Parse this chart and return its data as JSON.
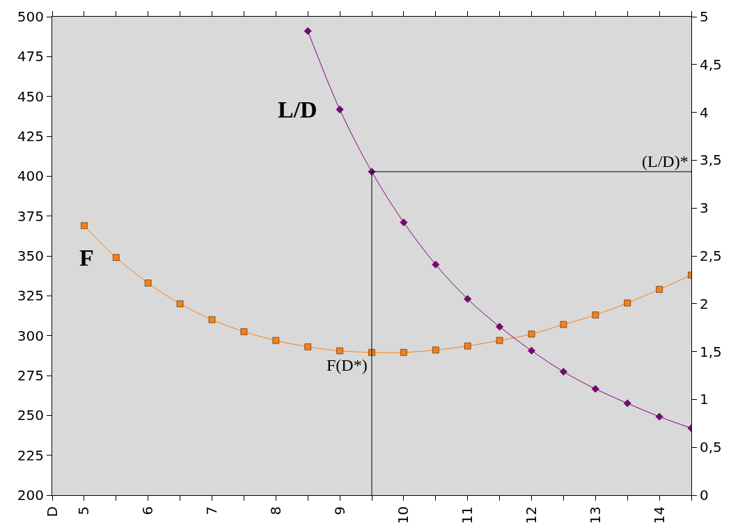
{
  "chart_data": {
    "type": "line",
    "x": [
      5,
      5.5,
      6,
      6.5,
      7,
      7.5,
      8,
      8.5,
      9,
      9.5,
      10,
      10.5,
      11,
      11.5,
      12,
      12.5,
      13,
      13.5,
      14,
      14.5
    ],
    "series": [
      {
        "name": "F",
        "color": "#ff7f0e",
        "marker": "square",
        "values": [
          369,
          349,
          333,
          320,
          310,
          302.5,
          297,
          293,
          290.5,
          289.5,
          289.5,
          291,
          293.5,
          297,
          301,
          307,
          313,
          320.5,
          329,
          338
        ]
      },
      {
        "name": "L/D",
        "color": "#800080",
        "marker": "diamond",
        "axis": "y2",
        "x": [
          8.5,
          9,
          9.5,
          10,
          10.5,
          11,
          11.5,
          12,
          12.5,
          13,
          13.5,
          14,
          14.5
        ],
        "values": [
          4.85,
          4.03,
          3.38,
          2.85,
          2.41,
          2.05,
          1.76,
          1.51,
          1.29,
          1.11,
          0.96,
          0.82,
          0.7
        ]
      }
    ],
    "xlim": [
      4.5,
      14.5
    ],
    "xticks": [
      {
        "value": 4.5,
        "label": "D"
      },
      5,
      {
        "value": 5.5,
        "label": null
      },
      6,
      {
        "value": 6.5,
        "label": null
      },
      7,
      {
        "value": 7.5,
        "label": null
      },
      8,
      {
        "value": 8.5,
        "label": null
      },
      9,
      {
        "value": 9.5,
        "label": null
      },
      10,
      {
        "value": 10.5,
        "label": null
      },
      11,
      {
        "value": 11.5,
        "label": null
      },
      12,
      {
        "value": 12.5,
        "label": null
      },
      13,
      {
        "value": 13.5,
        "label": null
      },
      14,
      {
        "value": 14.5,
        "label": null
      }
    ],
    "ylim": [
      200,
      500
    ],
    "yticks": [
      200,
      225,
      250,
      275,
      300,
      325,
      350,
      375,
      400,
      425,
      450,
      475,
      500
    ],
    "y2lim": [
      0,
      5
    ],
    "y2ticks": [
      0,
      {
        "value": 0.5,
        "label": "0,5"
      },
      1,
      {
        "value": 1.5,
        "label": "1,5"
      },
      2,
      {
        "value": 2.5,
        "label": "2,5"
      },
      3,
      {
        "value": 3.5,
        "label": "3,5"
      },
      4,
      {
        "value": 4.5,
        "label": "4,5"
      },
      5
    ],
    "ref_lines": [
      {
        "axis": "x",
        "value": 9.5,
        "label": "F(D*)",
        "color": "#000000"
      },
      {
        "axis": "y2",
        "value": 3.38,
        "label": "(L/D)*",
        "color": "#000000"
      }
    ],
    "grid": false,
    "legend": false
  }
}
